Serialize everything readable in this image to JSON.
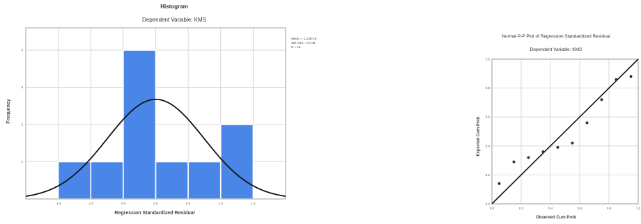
{
  "chart_data": [
    {
      "type": "bar",
      "title": "Histogram",
      "subtitle": "Dependent Variable: KMS",
      "xlabel": "Regression Standardized Residual",
      "ylabel": "Frequency",
      "bin_edges": [
        -1.5,
        -1.0,
        -0.5,
        0.0,
        0.5,
        1.0,
        1.5
      ],
      "values": [
        1,
        1,
        4,
        1,
        1,
        2
      ],
      "x_ticks": [
        "-1.5",
        "-1.0",
        "-0.5",
        "0.0",
        "0.5",
        "1.0",
        "1.5"
      ],
      "y_ticks": [
        "1",
        "2",
        "3",
        "4"
      ],
      "xlim": [
        -2.0,
        2.0
      ],
      "ylim": [
        0,
        4.6
      ],
      "normal_curve": {
        "mean": 0.0,
        "sd": 0.745
      },
      "stats": [
        "Mean = -1.13E-15",
        "Std. Dev. = 0.745",
        "N = 10"
      ],
      "bar_color": "#4a86e8",
      "grid": true
    },
    {
      "type": "scatter",
      "title": "Normal P-P Plot of Regression Standardized Residual",
      "subtitle": "Dependent Variable: KMS",
      "xlabel": "Observed Cum Prob",
      "ylabel": "Expected Cum Prob",
      "xlim": [
        0,
        1
      ],
      "ylim": [
        0,
        1
      ],
      "x_ticks": [
        "0.0",
        "0.2",
        "0.4",
        "0.6",
        "0.8",
        "1.0"
      ],
      "y_ticks": [
        "0.0",
        "0.2",
        "0.4",
        "0.6",
        "0.8",
        "1.0"
      ],
      "points": [
        {
          "x": 0.05,
          "y": 0.14
        },
        {
          "x": 0.15,
          "y": 0.29
        },
        {
          "x": 0.25,
          "y": 0.32
        },
        {
          "x": 0.35,
          "y": 0.36
        },
        {
          "x": 0.45,
          "y": 0.39
        },
        {
          "x": 0.55,
          "y": 0.42
        },
        {
          "x": 0.65,
          "y": 0.56
        },
        {
          "x": 0.75,
          "y": 0.72
        },
        {
          "x": 0.85,
          "y": 0.86
        },
        {
          "x": 0.95,
          "y": 0.88
        }
      ],
      "reference_line": [
        [
          0,
          0
        ],
        [
          1,
          1
        ]
      ],
      "grid": true
    }
  ]
}
